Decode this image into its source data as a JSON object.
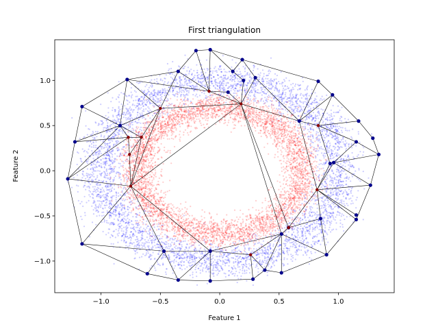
{
  "chart_data": {
    "type": "scatter",
    "title": "First triangulation",
    "xlabel": "Feature 1",
    "ylabel": "Feature 2",
    "xlim": [
      -1.39,
      1.47
    ],
    "ylim": [
      -1.35,
      1.45
    ],
    "xticks": [
      -1.0,
      -0.5,
      0.0,
      0.5,
      1.0
    ],
    "xtick_labels": [
      "−1.0",
      "−0.5",
      "0.0",
      "0.5",
      "1.0"
    ],
    "yticks": [
      -1.0,
      -0.5,
      0.0,
      0.5,
      1.0
    ],
    "ytick_labels": [
      "−1.0",
      "−0.5",
      "0.0",
      "0.5",
      "1.0"
    ],
    "grid": false,
    "colors": {
      "outer": "#0000ff",
      "inner": "#ff0000",
      "vertex_outer": "#00008b",
      "vertex_inner": "#8b0000",
      "edge": "#000000"
    },
    "point_clouds": [
      {
        "class": "outer",
        "count": 5000,
        "shape": "ring",
        "radius_mean": 1.0,
        "radius_sd": 0.1
      },
      {
        "class": "inner",
        "count": 5000,
        "shape": "ring",
        "radius_mean": 0.7,
        "radius_sd": 0.08
      }
    ],
    "vertices": [
      {
        "x": -1.28,
        "y": -0.09,
        "class": "outer"
      },
      {
        "x": -1.22,
        "y": 0.32,
        "class": "outer"
      },
      {
        "x": -1.16,
        "y": 0.71,
        "class": "outer"
      },
      {
        "x": -1.16,
        "y": -0.81,
        "class": "outer"
      },
      {
        "x": -0.84,
        "y": 0.5,
        "class": "outer"
      },
      {
        "x": -0.78,
        "y": 1.01,
        "class": "outer"
      },
      {
        "x": -0.61,
        "y": -1.14,
        "class": "outer"
      },
      {
        "x": -0.47,
        "y": -0.89,
        "class": "outer"
      },
      {
        "x": -0.35,
        "y": 1.1,
        "class": "outer"
      },
      {
        "x": -0.35,
        "y": -1.21,
        "class": "outer"
      },
      {
        "x": -0.2,
        "y": 1.33,
        "class": "outer"
      },
      {
        "x": -0.08,
        "y": 1.34,
        "class": "outer"
      },
      {
        "x": -0.08,
        "y": -0.89,
        "class": "outer"
      },
      {
        "x": -0.08,
        "y": -1.22,
        "class": "outer"
      },
      {
        "x": 0.07,
        "y": 0.87,
        "class": "outer"
      },
      {
        "x": 0.11,
        "y": 1.1,
        "class": "outer"
      },
      {
        "x": 0.19,
        "y": 1.23,
        "class": "outer"
      },
      {
        "x": 0.2,
        "y": 1.0,
        "class": "outer"
      },
      {
        "x": 0.28,
        "y": -1.2,
        "class": "outer"
      },
      {
        "x": 0.3,
        "y": 1.03,
        "class": "outer"
      },
      {
        "x": 0.38,
        "y": -1.1,
        "class": "outer"
      },
      {
        "x": 0.52,
        "y": -0.7,
        "class": "outer"
      },
      {
        "x": 0.58,
        "y": -0.63,
        "class": "outer"
      },
      {
        "x": 0.52,
        "y": -1.13,
        "class": "outer"
      },
      {
        "x": 0.67,
        "y": 0.55,
        "class": "outer"
      },
      {
        "x": 0.83,
        "y": 0.99,
        "class": "outer"
      },
      {
        "x": 0.85,
        "y": -0.53,
        "class": "outer"
      },
      {
        "x": 0.9,
        "y": -0.93,
        "class": "outer"
      },
      {
        "x": 0.95,
        "y": 0.84,
        "class": "outer"
      },
      {
        "x": 0.93,
        "y": 0.08,
        "class": "outer"
      },
      {
        "x": 0.96,
        "y": 0.09,
        "class": "outer"
      },
      {
        "x": 1.15,
        "y": -0.54,
        "class": "outer"
      },
      {
        "x": 1.15,
        "y": 0.32,
        "class": "outer"
      },
      {
        "x": 1.17,
        "y": 0.55,
        "class": "outer"
      },
      {
        "x": 1.27,
        "y": -0.16,
        "class": "outer"
      },
      {
        "x": 1.29,
        "y": 0.36,
        "class": "outer"
      },
      {
        "x": 1.34,
        "y": 0.18,
        "class": "outer"
      },
      {
        "x": 1.15,
        "y": -0.49,
        "class": "outer"
      },
      {
        "x": -0.77,
        "y": 0.37,
        "class": "inner"
      },
      {
        "x": -0.76,
        "y": 0.18,
        "class": "inner"
      },
      {
        "x": -0.75,
        "y": -0.17,
        "class": "inner"
      },
      {
        "x": -0.66,
        "y": 0.37,
        "class": "inner"
      },
      {
        "x": -0.5,
        "y": 0.69,
        "class": "inner"
      },
      {
        "x": -0.09,
        "y": 0.88,
        "class": "inner"
      },
      {
        "x": 0.18,
        "y": 0.74,
        "class": "inner"
      },
      {
        "x": 0.83,
        "y": 0.5,
        "class": "inner"
      },
      {
        "x": 0.82,
        "y": -0.21,
        "class": "inner"
      },
      {
        "x": 0.58,
        "y": -0.63,
        "class": "inner"
      },
      {
        "x": 0.26,
        "y": -0.93,
        "class": "inner"
      }
    ],
    "edges": [
      [
        0,
        1
      ],
      [
        1,
        2
      ],
      [
        2,
        5
      ],
      [
        5,
        8
      ],
      [
        8,
        10
      ],
      [
        10,
        11
      ],
      [
        11,
        16
      ],
      [
        16,
        25
      ],
      [
        25,
        28
      ],
      [
        28,
        33
      ],
      [
        33,
        35
      ],
      [
        35,
        36
      ],
      [
        36,
        34
      ],
      [
        34,
        31
      ],
      [
        31,
        27
      ],
      [
        27,
        23
      ],
      [
        23,
        20
      ],
      [
        20,
        18
      ],
      [
        18,
        13
      ],
      [
        13,
        9
      ],
      [
        9,
        6
      ],
      [
        6,
        3
      ],
      [
        3,
        0
      ],
      [
        0,
        38
      ],
      [
        0,
        40
      ],
      [
        0,
        4
      ],
      [
        1,
        4
      ],
      [
        1,
        38
      ],
      [
        2,
        4
      ],
      [
        4,
        5
      ],
      [
        4,
        42
      ],
      [
        4,
        41
      ],
      [
        4,
        38
      ],
      [
        5,
        42
      ],
      [
        5,
        43
      ],
      [
        8,
        42
      ],
      [
        8,
        43
      ],
      [
        10,
        43
      ],
      [
        11,
        43
      ],
      [
        11,
        15
      ],
      [
        15,
        16
      ],
      [
        15,
        17
      ],
      [
        17,
        44
      ],
      [
        14,
        44
      ],
      [
        14,
        43
      ],
      [
        43,
        44
      ],
      [
        42,
        44
      ],
      [
        19,
        44
      ],
      [
        16,
        19
      ],
      [
        19,
        24
      ],
      [
        25,
        24
      ],
      [
        28,
        24
      ],
      [
        24,
        44
      ],
      [
        24,
        45
      ],
      [
        45,
        28
      ],
      [
        45,
        33
      ],
      [
        45,
        32
      ],
      [
        45,
        29
      ],
      [
        29,
        30
      ],
      [
        30,
        32
      ],
      [
        32,
        36
      ],
      [
        30,
        36
      ],
      [
        30,
        34
      ],
      [
        30,
        46
      ],
      [
        29,
        46
      ],
      [
        24,
        46
      ],
      [
        46,
        34
      ],
      [
        46,
        31
      ],
      [
        46,
        37
      ],
      [
        46,
        26
      ],
      [
        26,
        27
      ],
      [
        26,
        22
      ],
      [
        22,
        46
      ],
      [
        22,
        44
      ],
      [
        21,
        22
      ],
      [
        21,
        44
      ],
      [
        21,
        27
      ],
      [
        21,
        23
      ],
      [
        21,
        20
      ],
      [
        21,
        48
      ],
      [
        48,
        20
      ],
      [
        48,
        18
      ],
      [
        48,
        12
      ],
      [
        12,
        21
      ],
      [
        12,
        13
      ],
      [
        12,
        9
      ],
      [
        12,
        7
      ],
      [
        7,
        9
      ],
      [
        7,
        6
      ],
      [
        7,
        3
      ],
      [
        7,
        40
      ],
      [
        40,
        3
      ],
      [
        40,
        12
      ],
      [
        40,
        44
      ],
      [
        40,
        42
      ],
      [
        40,
        41
      ],
      [
        41,
        42
      ],
      [
        39,
        40
      ],
      [
        38,
        39
      ],
      [
        38,
        41
      ],
      [
        39,
        41
      ]
    ]
  }
}
